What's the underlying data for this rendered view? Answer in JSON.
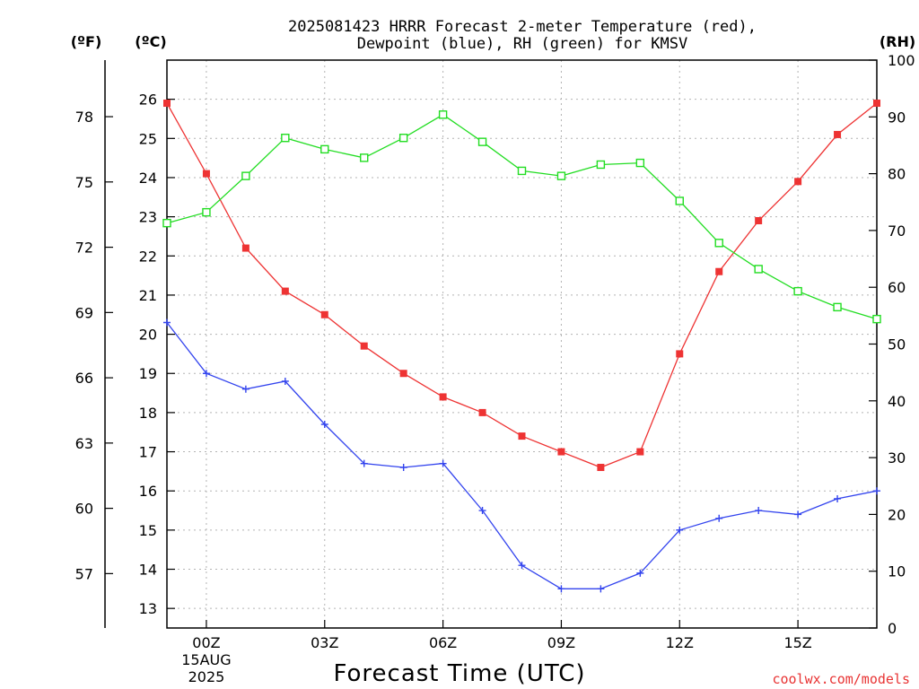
{
  "chart_data": {
    "type": "line",
    "title_lines": [
      "2025081423 HRRR Forecast 2-meter Temperature (red),",
      "Dewpoint (blue), RH (green) for KMSV"
    ],
    "xlabel": "Forecast Time (UTC)",
    "credit": "coolwx.com/models",
    "x_hours": [
      -1,
      0,
      1,
      2,
      3,
      4,
      5,
      6,
      7,
      8,
      9,
      10,
      11,
      12,
      13,
      14,
      15,
      16,
      17
    ],
    "x_ticks": [
      {
        "hour": 0,
        "lines": [
          "00Z",
          "15AUG",
          "2025"
        ]
      },
      {
        "hour": 3,
        "lines": [
          "03Z"
        ]
      },
      {
        "hour": 6,
        "lines": [
          "06Z"
        ]
      },
      {
        "hour": 9,
        "lines": [
          "09Z"
        ]
      },
      {
        "hour": 12,
        "lines": [
          "12Z"
        ]
      },
      {
        "hour": 15,
        "lines": [
          "15Z"
        ]
      }
    ],
    "xlim": [
      -1,
      17
    ],
    "grid": true,
    "axes": {
      "celsius": {
        "unit_label": "(ºC)",
        "range": [
          12.5,
          27
        ],
        "ticks": [
          13,
          14,
          15,
          16,
          17,
          18,
          19,
          20,
          21,
          22,
          23,
          24,
          25,
          26
        ]
      },
      "fahrenheit": {
        "unit_label": "(ºF)",
        "ticks": [
          57,
          60,
          63,
          66,
          69,
          72,
          75,
          78
        ]
      },
      "rh": {
        "unit_label": "(RH)",
        "range": [
          0,
          100
        ],
        "ticks": [
          0,
          10,
          20,
          30,
          40,
          50,
          60,
          70,
          80,
          90,
          100
        ]
      }
    },
    "series": [
      {
        "key": "temperature",
        "axis": "celsius",
        "color": "#ee3333",
        "marker": "filled-square",
        "values": [
          25.9,
          24.1,
          22.2,
          21.1,
          20.5,
          19.7,
          19.0,
          18.4,
          18.0,
          17.4,
          17.0,
          16.6,
          17.0,
          19.5,
          21.6,
          22.9,
          23.9,
          25.1,
          25.9
        ]
      },
      {
        "key": "dewpoint",
        "axis": "celsius",
        "color": "#3344ee",
        "marker": "plus",
        "values": [
          20.3,
          19.0,
          18.6,
          18.8,
          17.7,
          16.7,
          16.6,
          16.7,
          15.5,
          14.1,
          13.5,
          13.5,
          13.9,
          15.0,
          15.3,
          15.5,
          15.4,
          15.8,
          16.0
        ]
      },
      {
        "key": "rh",
        "axis": "rh",
        "color": "#22dd22",
        "marker": "open-square",
        "values": [
          71.3,
          73.2,
          79.6,
          86.3,
          84.3,
          82.8,
          86.3,
          90.4,
          85.6,
          80.5,
          79.6,
          81.6,
          81.9,
          75.2,
          67.8,
          63.2,
          59.3,
          56.5,
          54.4
        ]
      }
    ]
  }
}
